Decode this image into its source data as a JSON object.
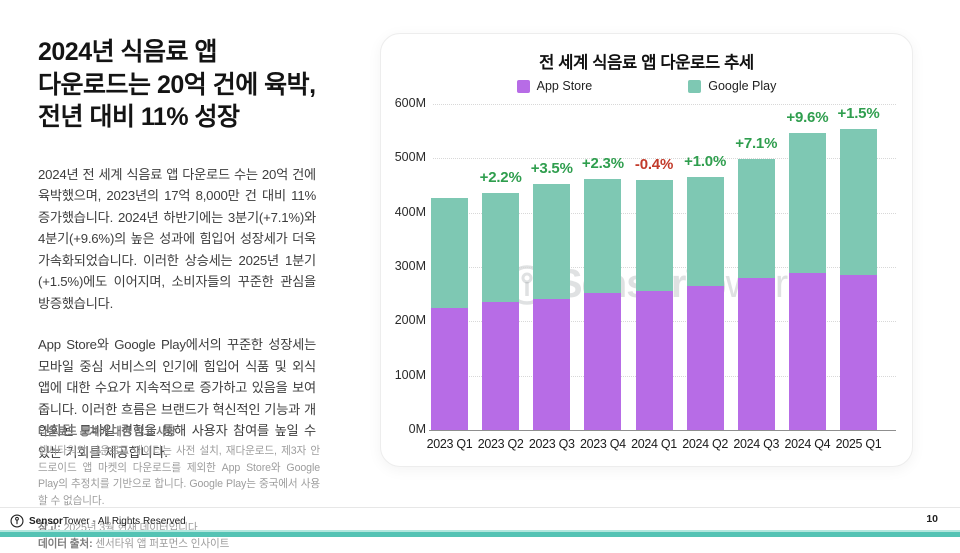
{
  "left": {
    "title": "2024년 식음료 앱\n다운로드는 20억 건에 육박,\n전년 대비 11% 성장",
    "paragraph1": "2024년 전 세계 식음료 앱 다운로드 수는 20억 건에 육박했으며, 2023년의 17억 8,000만 건 대비 11% 증가했습니다. 2024년 하반기에는 3분기(+7.1%)와 4분기(+9.6%)의 높은 성과에 힘입어 성장세가 더욱 가속화되었습니다. 이러한 상승세는 2025년 1분기(+1.5%)에도 이어지며, 소비자들의 꾸준한 관심을 방증했습니다.",
    "paragraph2": "App Store와 Google Play에서의 꾸준한 성장세는 모바일 중심 서비스의 인기에 힘입어 식품 및 외식 앱에 대한 수요가 지속적으로 증가하고 있음을 보여줍니다. 이러한 흐름은 브랜드가 혁신적인 기능과 개인화된 모바일 경험을 통해 사용자 참여를 높일 수 있는 기회를 제공합니다.",
    "notes": {
      "heading": "다운로드 통계에 대한 참고 사항",
      "body": "센서타워의 다운로드 데이터는 사전 설치, 재다운로드, 제3자 안드로이드 앱 마켓의 다운로드를 제외한 App Store와 Google Play의 추정치를 기반으로 합니다. Google Play는 중국에서 사용할 수 없습니다.",
      "note_label": "참고:",
      "note_text": " 2025년 3월 현재 데이터입니다",
      "source_label": "데이터 출처:",
      "source_text": " 센서타워 앱 퍼포먼스 인사이트"
    }
  },
  "footer": {
    "brand_bold": "Sensor",
    "brand_regular": "Tower",
    "rights": " - All Rights Reserved",
    "page_number": "10"
  },
  "watermark": {
    "bold": "Sensor",
    "regular": "Tower"
  },
  "chart_data": {
    "type": "bar",
    "stacked": true,
    "title": "전 세계 식음료 앱 다운로드 추세",
    "categories": [
      "2023 Q1",
      "2023 Q2",
      "2023 Q3",
      "2023 Q4",
      "2024 Q1",
      "2024 Q2",
      "2024 Q3",
      "2024 Q4",
      "2025 Q1"
    ],
    "series": [
      {
        "name": "App Store",
        "color": "#b76ce6",
        "values": [
          225,
          235,
          242,
          252,
          256,
          265,
          279,
          289,
          286
        ]
      },
      {
        "name": "Google Play",
        "color": "#7ec8b3",
        "values": [
          202,
          202,
          210,
          210,
          204,
          200,
          219,
          257,
          268
        ]
      }
    ],
    "totals": [
      427,
      437,
      452,
      462,
      460,
      465,
      498,
      546,
      554
    ],
    "growth_labels": [
      "",
      "+2.2%",
      "+3.5%",
      "+2.3%",
      "-0.4%",
      "+1.0%",
      "+7.1%",
      "+9.6%",
      "+1.5%"
    ],
    "growth_positive_color": "#2f9e4e",
    "growth_negative_color": "#c23a2a",
    "unit": "M",
    "ylim": [
      0,
      600
    ],
    "ytick_step": 100,
    "ytick_labels": [
      "0M",
      "100M",
      "200M",
      "300M",
      "400M",
      "500M",
      "600M"
    ],
    "grid": "dotted horizontal",
    "legend_position": "top"
  }
}
